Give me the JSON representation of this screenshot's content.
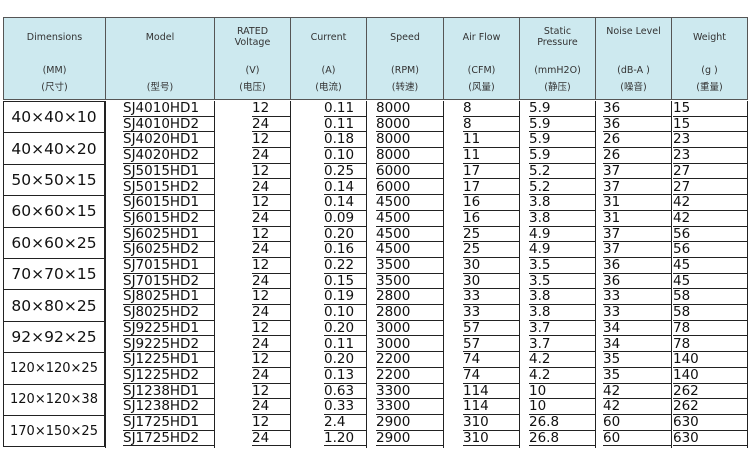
{
  "header_color": "#cde9ef",
  "columns": [
    {
      "title": "Dimensions",
      "unit": "(MM)",
      "cn": "(尺寸)"
    },
    {
      "title": "Model",
      "unit": "",
      "cn": "(型号)"
    },
    {
      "title": "RATED Voltage",
      "unit": "(V)",
      "cn": "(电压)"
    },
    {
      "title": "Current",
      "unit": "(A)",
      "cn": "(电流)"
    },
    {
      "title": "Speed",
      "unit": "(RPM)",
      "cn": "(转速)"
    },
    {
      "title": "Air Flow",
      "unit": "(CFM)",
      "cn": "(风量)"
    },
    {
      "title": "Static Pressure",
      "unit": "(mmH2O)",
      "cn": "(静压)"
    },
    {
      "title": "Noise Level",
      "unit": "(dB-A )",
      "cn": "(噪音)"
    },
    {
      "title": "Weight",
      "unit": "(g )",
      "cn": "(重量)"
    }
  ],
  "groups": [
    {
      "dim": "40×40×10",
      "rows": [
        [
          "SJ4010HD1",
          "12",
          "0.11",
          "8000",
          "8",
          "5.9",
          "36",
          "15"
        ],
        [
          "SJ4010HD2",
          "24",
          "0.11",
          "8000",
          "8",
          "5.9",
          "36",
          "15"
        ]
      ]
    },
    {
      "dim": "40×40×20",
      "rows": [
        [
          "SJ4020HD1",
          "12",
          "0.18",
          "8000",
          "11",
          "5.9",
          "26",
          "23"
        ],
        [
          "SJ4020HD2",
          "24",
          "0.10",
          "8000",
          "11",
          "5.9",
          "26",
          "23"
        ]
      ]
    },
    {
      "dim": "50×50×15",
      "rows": [
        [
          "SJ5015HD1",
          "12",
          "0.25",
          "6000",
          "17",
          "5.2",
          "37",
          "27"
        ],
        [
          "SJ5015HD2",
          "24",
          "0.14",
          "6000",
          "17",
          "5.2",
          "37",
          "27"
        ]
      ]
    },
    {
      "dim": "60×60×15",
      "rows": [
        [
          "SJ6015HD1",
          "12",
          "0.14",
          "4500",
          "16",
          "3.8",
          "31",
          "42"
        ],
        [
          "SJ6015HD2",
          "24",
          "0.09",
          "4500",
          "16",
          "3.8",
          "31",
          "42"
        ]
      ]
    },
    {
      "dim": "60×60×25",
      "rows": [
        [
          "SJ6025HD1",
          "12",
          "0.20",
          "4500",
          "25",
          "4.9",
          "37",
          "56"
        ],
        [
          "SJ6025HD2",
          "24",
          "0.16",
          "4500",
          "25",
          "4.9",
          "37",
          "56"
        ]
      ]
    },
    {
      "dim": "70×70×15",
      "rows": [
        [
          "SJ7015HD1",
          "12",
          "0.22",
          "3500",
          "30",
          "3.5",
          "36",
          "45"
        ],
        [
          "SJ7015HD2",
          "24",
          "0.15",
          "3500",
          "30",
          "3.5",
          "36",
          "45"
        ]
      ]
    },
    {
      "dim": "80×80×25",
      "rows": [
        [
          "SJ8025HD1",
          "12",
          "0.19",
          "2800",
          "33",
          "3.8",
          "33",
          "58"
        ],
        [
          "SJ8025HD2",
          "24",
          "0.10",
          "2800",
          "33",
          "3.8",
          "33",
          "58"
        ]
      ]
    },
    {
      "dim": "92×92×25",
      "rows": [
        [
          "SJ9225HD1",
          "12",
          "0.20",
          "3000",
          "57",
          "3.7",
          "34",
          "78"
        ],
        [
          "SJ9225HD2",
          "24",
          "0.11",
          "3000",
          "57",
          "3.7",
          "34",
          "78"
        ]
      ]
    },
    {
      "dim": "120×120×25",
      "rows": [
        [
          "SJ1225HD1",
          "12",
          "0.20",
          "2200",
          "74",
          "4.2",
          "35",
          "140"
        ],
        [
          "SJ1225HD2",
          "24",
          "0.13",
          "2200",
          "74",
          "4.2",
          "35",
          "140"
        ]
      ]
    },
    {
      "dim": "120×120×38",
      "rows": [
        [
          "SJ1238HD1",
          "12",
          "0.63",
          "3300",
          "114",
          "10",
          "42",
          "262"
        ],
        [
          "SJ1238HD2",
          "24",
          "0.33",
          "3300",
          "114",
          "10",
          "42",
          "262"
        ]
      ]
    },
    {
      "dim": "170×150×25",
      "rows": [
        [
          "SJ1725HD1",
          "12",
          "2.4",
          "2900",
          "310",
          "26.8",
          "60",
          "630"
        ],
        [
          "SJ1725HD2",
          "24",
          "1.20",
          "2900",
          "310",
          "26.8",
          "60",
          "630"
        ]
      ]
    }
  ]
}
